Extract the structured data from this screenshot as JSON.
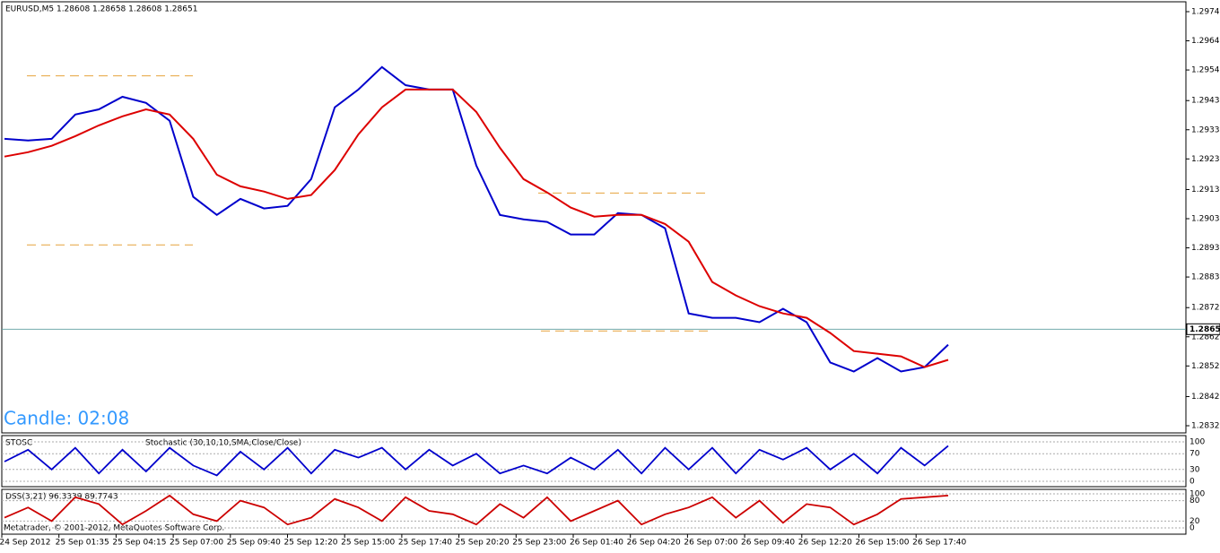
{
  "header": "EURUSD,M5  1.28608 1.28658 1.28608 1.28651",
  "candle_timer": "Candle:  02:08",
  "copyright": "Metatrader, © 2001-2012, MetaQuotes Software Corp.",
  "price_axis": {
    "ylim": [
      1.2832,
      1.2974
    ],
    "yticks": [
      {
        "value": 1.2974,
        "label": "1.29740"
      },
      {
        "value": 1.2964,
        "label": "1.29640"
      },
      {
        "value": 1.2954,
        "label": "1.29540"
      },
      1.29435,
      1.29335,
      1.29235,
      {
        "value": 1.2913,
        "label": "1.29130"
      },
      {
        "value": 1.2903,
        "label": "1.29030"
      },
      {
        "value": 1.2893,
        "label": "1.28930"
      },
      {
        "value": 1.2883,
        "label": "1.28830"
      },
      1.28725,
      1.28625,
      1.28525,
      {
        "value": 1.2842,
        "label": "1.28420"
      },
      {
        "value": 1.2832,
        "label": "1.28320"
      }
    ],
    "current_price": 1.28651
  },
  "time_axis": [
    "24 Sep 2012",
    "25 Sep 01:35",
    "25 Sep 04:15",
    "25 Sep 07:00",
    "25 Sep 09:40",
    "25 Sep 12:20",
    "25 Sep 15:00",
    "25 Sep 17:40",
    "25 Sep 20:20",
    "25 Sep 23:00",
    "26 Sep 01:40",
    "26 Sep 04:20",
    "26 Sep 07:00",
    "26 Sep 09:40",
    "26 Sep 12:20",
    "26 Sep 15:00",
    "26 Sep 17:40"
  ],
  "price_series": [
    {
      "color": "#0000cc",
      "values": [
        1.29304,
        1.29298,
        1.29304,
        1.29387,
        1.29405,
        1.29448,
        1.29427,
        1.29366,
        1.29105,
        1.29043,
        1.29098,
        1.29065,
        1.29074,
        1.29166,
        1.29412,
        1.29473,
        1.2955,
        1.29488,
        1.29473,
        1.29473,
        1.29212,
        1.29043,
        1.29028,
        1.29019,
        1.28976,
        1.28976,
        1.29049,
        1.29043,
        1.28997,
        1.28705,
        1.2869,
        1.2869,
        1.28675,
        1.28721,
        1.28675,
        1.28537,
        1.28506,
        1.28552,
        1.28506,
        1.28521,
        1.28598
      ]
    },
    {
      "color": "#dd0000",
      "values": [
        1.29243,
        1.29258,
        1.2928,
        1.29313,
        1.2935,
        1.29381,
        1.29405,
        1.29387,
        1.29304,
        1.29181,
        1.29141,
        1.29123,
        1.29098,
        1.29111,
        1.29197,
        1.29319,
        1.29412,
        1.29473,
        1.29473,
        1.29473,
        1.29396,
        1.29273,
        1.29166,
        1.2912,
        1.29068,
        1.29037,
        1.29043,
        1.29043,
        1.29012,
        1.28951,
        1.28813,
        1.28767,
        1.2873,
        1.28705,
        1.2869,
        1.28638,
        1.28576,
        1.28567,
        1.28558,
        1.28521,
        1.28546
      ]
    }
  ],
  "levels": [
    1.2952,
    1.2894,
    1.29118,
    1.28645
  ],
  "stosc": {
    "label": "STOSC",
    "label2": "Stochastic (30,10,10,SMA,Close/Close)",
    "ylim": [
      0,
      100
    ],
    "yticks": [
      100,
      70,
      30,
      0
    ],
    "color": "#0000cc",
    "values": [
      50,
      80,
      30,
      85,
      20,
      80,
      25,
      85,
      40,
      15,
      75,
      30,
      85,
      20,
      80,
      60,
      85,
      30,
      80,
      40,
      70,
      20,
      40,
      20,
      60,
      30,
      80,
      20,
      85,
      30,
      85,
      20,
      80,
      55,
      85,
      30,
      70,
      20,
      85,
      40,
      90
    ]
  },
  "dss": {
    "label": "DSS(3,21) 96.3339 89.7743",
    "ylim": [
      0,
      100
    ],
    "yticks": [
      100,
      80,
      20,
      0
    ],
    "color": "#cc0000",
    "values": [
      30,
      60,
      20,
      90,
      70,
      10,
      50,
      95,
      40,
      20,
      80,
      60,
      10,
      30,
      85,
      60,
      20,
      90,
      50,
      40,
      10,
      70,
      30,
      90,
      20,
      50,
      80,
      10,
      40,
      60,
      90,
      30,
      80,
      15,
      70,
      60,
      10,
      40,
      85,
      90,
      95
    ]
  }
}
